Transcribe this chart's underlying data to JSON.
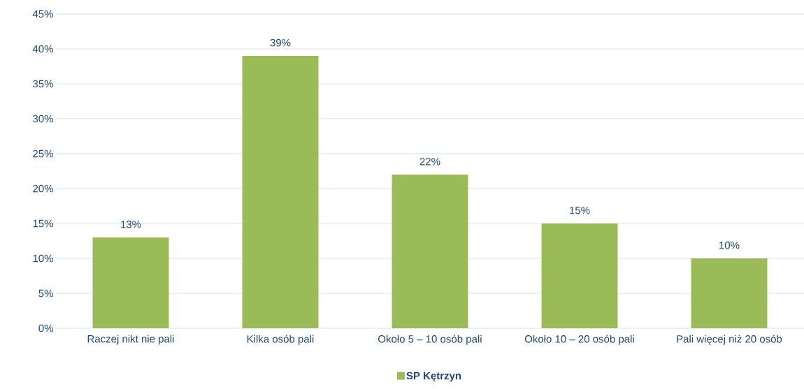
{
  "chart_data": {
    "type": "bar",
    "categories": [
      "Raczej nikt nie pali",
      "Kilka osób pali",
      "Około 5 – 10 osób pali",
      "Około 10 – 20 osób pali",
      "Pali więcej niż 20 osób"
    ],
    "series": [
      {
        "name": "**SP Kętrzyn**",
        "color": "#9bbb59",
        "values": [
          13,
          39,
          22,
          15,
          10
        ]
      }
    ],
    "value_labels": [
      "13%",
      "39%",
      "22%",
      "15%",
      "10%"
    ],
    "ylim": [
      0,
      45
    ],
    "yticks": [
      {
        "value": 0,
        "label": "0%"
      },
      {
        "value": 5,
        "label": "5%"
      },
      {
        "value": 10,
        "label": "10%"
      },
      {
        "value": 15,
        "label": "15%"
      },
      {
        "value": 20,
        "label": "20%"
      },
      {
        "value": 25,
        "label": "25%"
      },
      {
        "value": 30,
        "label": "30%"
      },
      {
        "value": 35,
        "label": "35%"
      },
      {
        "value": 40,
        "label": "40%"
      },
      {
        "value": 45,
        "label": "45%"
      }
    ],
    "grid": "y",
    "legend": "bottom"
  }
}
